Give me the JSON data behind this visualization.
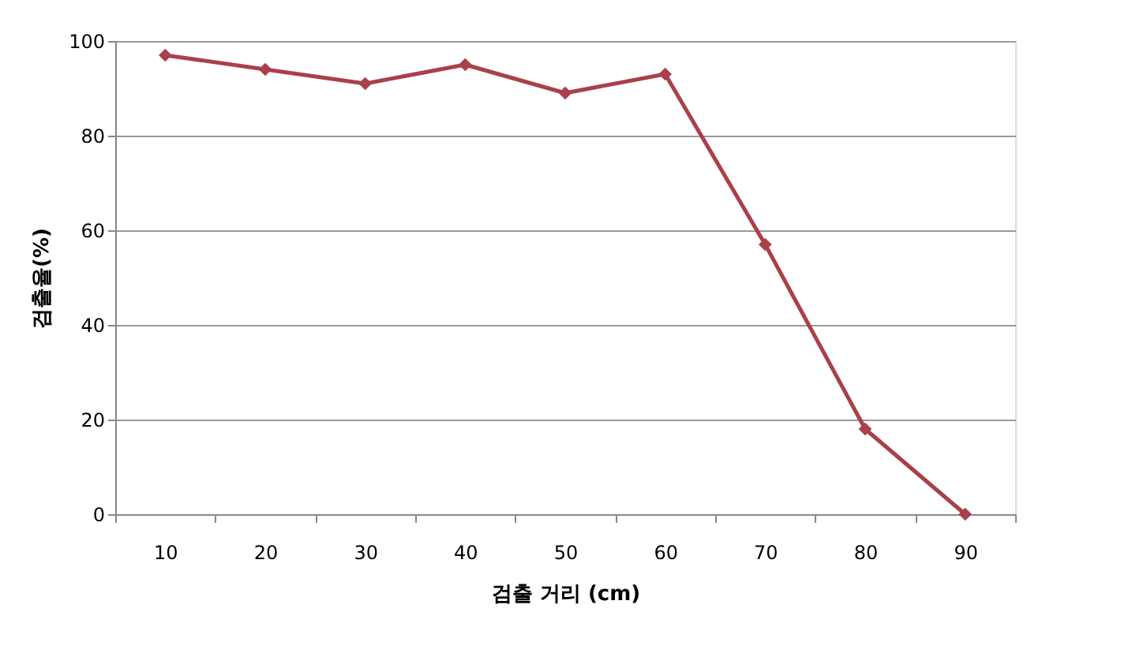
{
  "chart_data": {
    "type": "line",
    "xlabel": "검출 거리 (cm)",
    "ylabel": "검출율(%)",
    "categories": [
      "10",
      "20",
      "30",
      "40",
      "50",
      "60",
      "70",
      "80",
      "90"
    ],
    "series": [
      {
        "color": "#a9404a",
        "values": [
          97,
          94,
          91,
          95,
          89,
          93,
          57,
          18,
          0
        ]
      }
    ],
    "ylim": [
      0,
      100
    ],
    "yticks": [
      0,
      20,
      40,
      60,
      80,
      100
    ],
    "grid": "y",
    "marker": "diamond",
    "line_style": "solid"
  }
}
